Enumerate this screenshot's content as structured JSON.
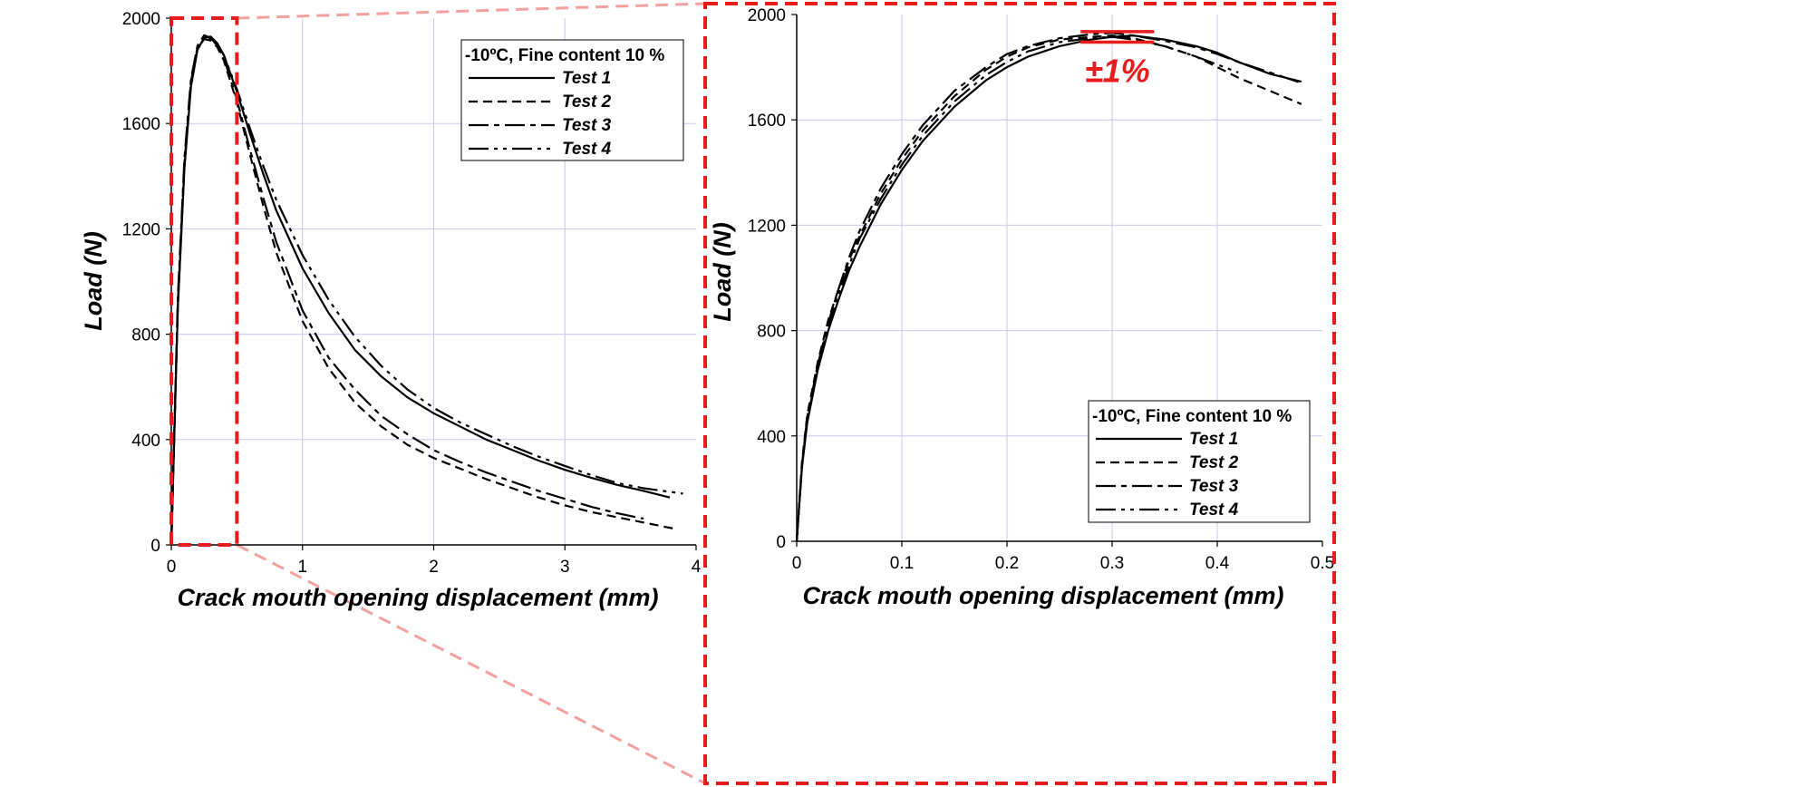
{
  "colors": {
    "curve": "#000000",
    "grid": "#c8c8f0",
    "highlight": "#e81c1c",
    "connector": "#f4a0a0"
  },
  "chart_data": [
    {
      "type": "line",
      "xlabel": "Crack mouth opening displacement (mm)",
      "ylabel": "Load (N)",
      "xlim": [
        0,
        4
      ],
      "ylim": [
        0,
        2000
      ],
      "xticks": [
        "0",
        "1",
        "2",
        "3",
        "4"
      ],
      "yticks": [
        "0",
        "400",
        "800",
        "1200",
        "1600",
        "2000"
      ],
      "grid": true,
      "legend": {
        "title": "-10ºC, Fine content 10 %",
        "placement": "top-right"
      },
      "highlight_region": {
        "x": [
          0,
          0.5
        ],
        "y": [
          0,
          2000
        ]
      },
      "series": [
        {
          "name": "Test 1",
          "style": "solid",
          "x": [
            0,
            0.05,
            0.1,
            0.15,
            0.2,
            0.25,
            0.3,
            0.35,
            0.4,
            0.5,
            0.6,
            0.7,
            0.8,
            1.0,
            1.2,
            1.4,
            1.6,
            1.8,
            2.0,
            2.2,
            2.4,
            2.6,
            2.8,
            3.0,
            3.2,
            3.4,
            3.6,
            3.8
          ],
          "y": [
            0,
            900,
            1430,
            1740,
            1880,
            1925,
            1930,
            1905,
            1860,
            1720,
            1560,
            1410,
            1270,
            1050,
            880,
            740,
            640,
            560,
            500,
            450,
            400,
            360,
            320,
            285,
            255,
            228,
            205,
            180
          ]
        },
        {
          "name": "Test 2",
          "style": "dashed",
          "x": [
            0,
            0.05,
            0.1,
            0.15,
            0.2,
            0.25,
            0.3,
            0.35,
            0.4,
            0.5,
            0.6,
            0.7,
            0.8,
            1.0,
            1.2,
            1.4,
            1.6,
            1.8,
            2.0,
            2.2,
            2.4,
            2.6,
            2.8,
            3.0,
            3.2,
            3.4,
            3.6,
            3.85
          ],
          "y": [
            0,
            920,
            1450,
            1760,
            1890,
            1920,
            1915,
            1890,
            1840,
            1680,
            1480,
            1290,
            1110,
            850,
            670,
            540,
            450,
            380,
            330,
            290,
            250,
            215,
            180,
            150,
            125,
            105,
            85,
            60
          ]
        },
        {
          "name": "Test 3",
          "style": "dash-long",
          "x": [
            0,
            0.05,
            0.1,
            0.15,
            0.2,
            0.25,
            0.3,
            0.35,
            0.4,
            0.5,
            0.6,
            0.7,
            0.8,
            1.0,
            1.2,
            1.4,
            1.6,
            1.8,
            2.0,
            2.2,
            2.4,
            2.6,
            2.8,
            3.0,
            3.2,
            3.4,
            3.6
          ],
          "y": [
            0,
            940,
            1470,
            1770,
            1895,
            1935,
            1925,
            1895,
            1850,
            1690,
            1500,
            1320,
            1150,
            890,
            710,
            590,
            490,
            420,
            360,
            315,
            275,
            240,
            205,
            175,
            145,
            120,
            100
          ]
        },
        {
          "name": "Test 4",
          "style": "dash-dot",
          "x": [
            0,
            0.05,
            0.1,
            0.15,
            0.2,
            0.25,
            0.3,
            0.35,
            0.4,
            0.5,
            0.6,
            0.7,
            0.8,
            1.0,
            1.2,
            1.4,
            1.6,
            1.8,
            2.0,
            2.2,
            2.4,
            2.6,
            2.8,
            3.0,
            3.2,
            3.4,
            3.6,
            3.9
          ],
          "y": [
            0,
            910,
            1440,
            1750,
            1885,
            1920,
            1920,
            1900,
            1860,
            1730,
            1580,
            1440,
            1310,
            1100,
            930,
            790,
            680,
            590,
            520,
            465,
            420,
            375,
            335,
            300,
            265,
            235,
            215,
            195
          ]
        }
      ]
    },
    {
      "type": "line",
      "xlabel": "Crack mouth opening displacement (mm)",
      "ylabel": "Load (N)",
      "xlim": [
        0,
        0.5
      ],
      "ylim": [
        0,
        2000
      ],
      "xticks": [
        "0",
        "0.1",
        "0.2",
        "0.3",
        "0.4",
        "0.5"
      ],
      "yticks": [
        "0",
        "400",
        "800",
        "1200",
        "1600",
        "2000"
      ],
      "grid": true,
      "legend": {
        "title": "-10ºC, Fine content 10 %",
        "placement": "bottom-right"
      },
      "band": {
        "label": "±1%",
        "x": [
          0.27,
          0.34
        ],
        "y_upper": 1935,
        "y_lower": 1895
      },
      "series": [
        {
          "name": "Test 1",
          "style": "solid",
          "x": [
            0,
            0.005,
            0.01,
            0.02,
            0.03,
            0.04,
            0.05,
            0.06,
            0.08,
            0.1,
            0.12,
            0.15,
            0.18,
            0.2,
            0.22,
            0.25,
            0.28,
            0.3,
            0.32,
            0.35,
            0.38,
            0.4,
            0.42,
            0.45,
            0.48
          ],
          "y": [
            0,
            280,
            450,
            650,
            800,
            920,
            1030,
            1120,
            1280,
            1410,
            1520,
            1650,
            1750,
            1800,
            1840,
            1880,
            1905,
            1915,
            1920,
            1905,
            1880,
            1855,
            1820,
            1775,
            1745
          ]
        },
        {
          "name": "Test 2",
          "style": "dashed",
          "x": [
            0,
            0.005,
            0.01,
            0.02,
            0.03,
            0.04,
            0.05,
            0.06,
            0.08,
            0.1,
            0.12,
            0.15,
            0.18,
            0.2,
            0.22,
            0.25,
            0.28,
            0.3,
            0.32,
            0.35,
            0.38,
            0.4,
            0.42,
            0.45,
            0.48
          ],
          "y": [
            0,
            300,
            480,
            680,
            840,
            960,
            1070,
            1160,
            1320,
            1450,
            1560,
            1690,
            1790,
            1840,
            1875,
            1905,
            1915,
            1920,
            1910,
            1880,
            1840,
            1800,
            1760,
            1710,
            1660
          ]
        },
        {
          "name": "Test 3",
          "style": "dash-long",
          "x": [
            0,
            0.005,
            0.01,
            0.02,
            0.03,
            0.04,
            0.05,
            0.06,
            0.08,
            0.1,
            0.12,
            0.15,
            0.18,
            0.2,
            0.22,
            0.25,
            0.28,
            0.3,
            0.32,
            0.35,
            0.38,
            0.4,
            0.42,
            0.45,
            0.48
          ],
          "y": [
            0,
            290,
            470,
            670,
            830,
            960,
            1080,
            1180,
            1340,
            1470,
            1580,
            1710,
            1800,
            1850,
            1880,
            1910,
            1925,
            1930,
            1920,
            1900,
            1875,
            1850,
            1820,
            1780,
            1740
          ]
        },
        {
          "name": "Test 4",
          "style": "dash-dot",
          "x": [
            0,
            0.005,
            0.01,
            0.02,
            0.03,
            0.04,
            0.05,
            0.06,
            0.08,
            0.1,
            0.12,
            0.15,
            0.18,
            0.2,
            0.22,
            0.25,
            0.28,
            0.3,
            0.32,
            0.35,
            0.38,
            0.4,
            0.42
          ],
          "y": [
            0,
            285,
            460,
            660,
            820,
            940,
            1050,
            1150,
            1300,
            1430,
            1540,
            1670,
            1770,
            1820,
            1860,
            1895,
            1910,
            1915,
            1905,
            1880,
            1840,
            1810,
            1780
          ]
        }
      ]
    }
  ]
}
